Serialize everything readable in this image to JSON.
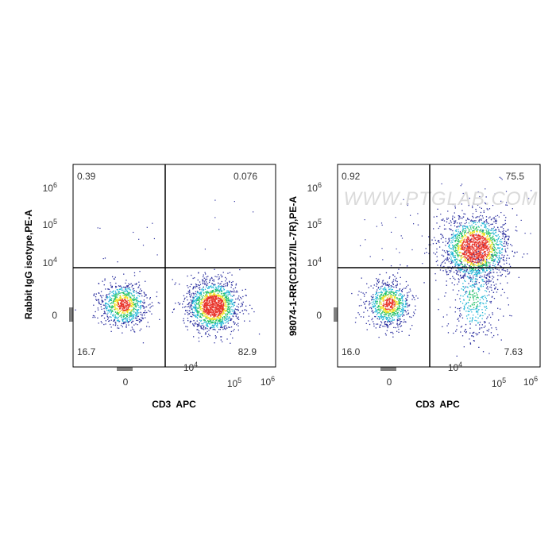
{
  "chart_data": [
    {
      "type": "scatter",
      "xlabel": "CD3  APC",
      "ylabel": "Rabbit IgG isotype,PE-A",
      "x_ticks": [
        "0",
        "10^4",
        "10^5",
        "10^6"
      ],
      "y_ticks": [
        "0",
        "10^4",
        "10^5",
        "10^6"
      ],
      "scale": "biexponential",
      "quadrants": [
        {
          "position": "upper-left",
          "value": "0.39"
        },
        {
          "position": "upper-right",
          "value": "0.076"
        },
        {
          "position": "lower-left",
          "value": "16.7"
        },
        {
          "position": "lower-right",
          "value": "82.9"
        }
      ],
      "populations": [
        {
          "name": "CD3- / marker-",
          "center_x": 0,
          "center_y": 0
        },
        {
          "name": "CD3+ / marker-",
          "center_x": 35000,
          "center_y": 0
        }
      ],
      "watermark": ""
    },
    {
      "type": "scatter",
      "xlabel": "CD3  APC",
      "ylabel": "98074-1-RR(CD127/IL-7R),PE-A",
      "x_ticks": [
        "0",
        "10^4",
        "10^5",
        "10^6"
      ],
      "y_ticks": [
        "0",
        "10^4",
        "10^5",
        "10^6"
      ],
      "scale": "biexponential",
      "quadrants": [
        {
          "position": "upper-left",
          "value": "0.92"
        },
        {
          "position": "upper-right",
          "value": "75.5"
        },
        {
          "position": "lower-left",
          "value": "16.0"
        },
        {
          "position": "lower-right",
          "value": "7.63"
        }
      ],
      "populations": [
        {
          "name": "CD3- / CD127-",
          "center_x": 0,
          "center_y": 0
        },
        {
          "name": "CD3+ / CD127+",
          "center_x": 40000,
          "center_y": 25000
        },
        {
          "name": "CD3+ / CD127-",
          "center_x": 35000,
          "center_y": 0
        }
      ],
      "watermark": "WWW.PTGLAB.COM"
    }
  ],
  "colors": {
    "density_low": "#2b2f9e",
    "density_mid_low": "#21b6d6",
    "density_mid": "#26c26a",
    "density_mid_high": "#f0e224",
    "density_high": "#e8342a",
    "axis": "#000000"
  }
}
